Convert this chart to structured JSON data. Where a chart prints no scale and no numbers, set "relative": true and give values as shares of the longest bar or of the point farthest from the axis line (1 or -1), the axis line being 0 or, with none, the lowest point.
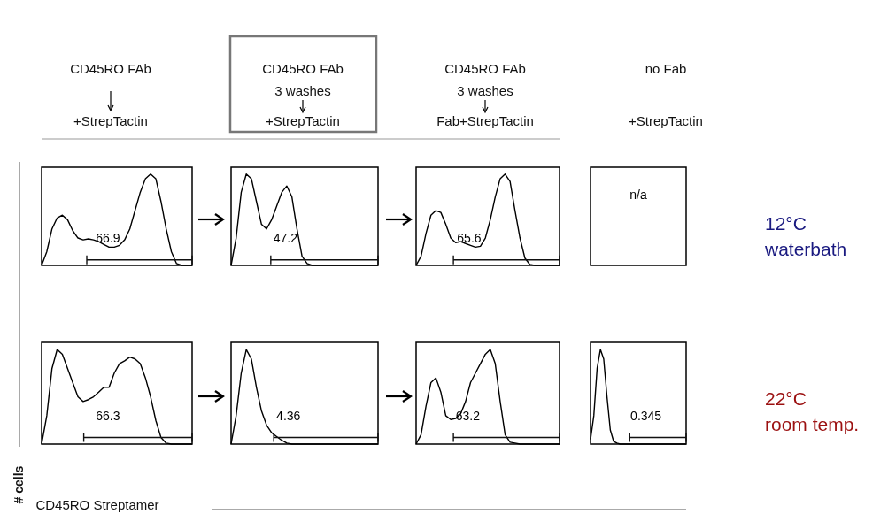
{
  "chart_data": [
    {
      "type": "line",
      "relative": true,
      "categories": [
        null,
        null,
        null,
        null,
        null,
        null,
        null,
        null,
        null,
        null,
        null,
        null,
        null,
        null,
        null,
        null,
        null,
        null,
        null,
        null,
        null,
        null,
        null,
        null,
        null,
        null,
        null,
        null,
        null,
        null
      ],
      "color": "#000000",
      "values": [
        0,
        0.15,
        0.4,
        0.52,
        0.55,
        0.5,
        0.38,
        0.3,
        0.28,
        0.29,
        0.28,
        0.26,
        0.23,
        0.2,
        0.2,
        0.22,
        0.28,
        0.4,
        0.6,
        0.8,
        0.95,
        1,
        0.95,
        0.7,
        0.4,
        0.15,
        0.02,
        0,
        0,
        0
      ],
      "ref_lines": [
        {
          "axis": "y",
          "value": 0.06
        }
      ],
      "annotations": [
        {
          "text": "66.9",
          "y": 0.06
        }
      ]
    },
    {
      "type": "line",
      "relative": true,
      "categories": [
        null,
        null,
        null,
        null,
        null,
        null,
        null,
        null,
        null,
        null,
        null,
        null,
        null,
        null,
        null,
        null,
        null,
        null,
        null,
        null,
        null,
        null,
        null,
        null,
        null,
        null,
        null,
        null,
        null,
        null
      ],
      "color": "#000000",
      "values": [
        0,
        0.3,
        0.8,
        1,
        0.95,
        0.7,
        0.45,
        0.4,
        0.5,
        0.65,
        0.8,
        0.87,
        0.75,
        0.4,
        0.1,
        0.02,
        0,
        0,
        0,
        0,
        0,
        0,
        0,
        0,
        0,
        0,
        0,
        0,
        0,
        0
      ],
      "ref_lines": [
        {
          "axis": "y",
          "value": 0.06
        }
      ],
      "annotations": [
        {
          "text": "47.2",
          "y": 0.06
        }
      ]
    },
    {
      "type": "line",
      "relative": true,
      "categories": [
        null,
        null,
        null,
        null,
        null,
        null,
        null,
        null,
        null,
        null,
        null,
        null,
        null,
        null,
        null,
        null,
        null,
        null,
        null,
        null,
        null,
        null,
        null,
        null,
        null,
        null,
        null,
        null,
        null,
        null
      ],
      "color": "#000000",
      "values": [
        0,
        0.1,
        0.35,
        0.55,
        0.6,
        0.58,
        0.45,
        0.3,
        0.25,
        0.26,
        0.24,
        0.22,
        0.2,
        0.21,
        0.3,
        0.5,
        0.75,
        0.95,
        1,
        0.92,
        0.6,
        0.3,
        0.08,
        0.01,
        0,
        0,
        0,
        0,
        0,
        0
      ],
      "ref_lines": [
        {
          "axis": "y",
          "value": 0.06
        }
      ],
      "annotations": [
        {
          "text": "65.6",
          "y": 0.06
        }
      ]
    },
    {
      "type": "other",
      "annotations": [
        "n/a"
      ]
    },
    {
      "type": "line",
      "relative": true,
      "categories": [
        null,
        null,
        null,
        null,
        null,
        null,
        null,
        null,
        null,
        null,
        null,
        null,
        null,
        null,
        null,
        null,
        null,
        null,
        null,
        null,
        null,
        null,
        null,
        null,
        null,
        null,
        null,
        null,
        null,
        null
      ],
      "color": "#000000",
      "values": [
        0,
        0.3,
        0.8,
        1,
        0.95,
        0.8,
        0.65,
        0.5,
        0.45,
        0.47,
        0.5,
        0.55,
        0.6,
        0.6,
        0.75,
        0.85,
        0.88,
        0.92,
        0.9,
        0.85,
        0.7,
        0.5,
        0.25,
        0.07,
        0.01,
        0,
        0,
        0,
        0,
        0
      ],
      "ref_lines": [
        {
          "axis": "y",
          "value": 0.07
        }
      ],
      "annotations": [
        {
          "text": "66.3",
          "y": 0.07
        }
      ]
    },
    {
      "type": "line",
      "relative": true,
      "categories": [
        null,
        null,
        null,
        null,
        null,
        null,
        null,
        null,
        null,
        null,
        null,
        null,
        null,
        null,
        null,
        null,
        null,
        null,
        null,
        null,
        null,
        null,
        null,
        null,
        null,
        null,
        null,
        null,
        null,
        null
      ],
      "color": "#000000",
      "values": [
        0,
        0.3,
        0.75,
        1,
        0.9,
        0.6,
        0.35,
        0.2,
        0.12,
        0.08,
        0.04,
        0.01,
        0,
        0,
        0,
        0,
        0,
        0,
        0,
        0,
        0,
        0,
        0,
        0,
        0,
        0,
        0,
        0,
        0,
        0
      ],
      "ref_lines": [
        {
          "axis": "y",
          "value": 0.07
        }
      ],
      "annotations": [
        {
          "text": "4.36",
          "y": 0.07
        }
      ]
    },
    {
      "type": "line",
      "relative": true,
      "categories": [
        null,
        null,
        null,
        null,
        null,
        null,
        null,
        null,
        null,
        null,
        null,
        null,
        null,
        null,
        null,
        null,
        null,
        null,
        null,
        null,
        null,
        null,
        null,
        null,
        null,
        null,
        null,
        null,
        null,
        null
      ],
      "color": "#000000",
      "values": [
        0,
        0.1,
        0.4,
        0.65,
        0.7,
        0.55,
        0.3,
        0.26,
        0.27,
        0.32,
        0.45,
        0.65,
        0.75,
        0.85,
        0.95,
        1,
        0.85,
        0.45,
        0.1,
        0.02,
        0.01,
        0,
        0,
        0,
        0,
        0,
        0,
        0,
        0,
        0
      ],
      "ref_lines": [
        {
          "axis": "y",
          "value": 0.07
        }
      ],
      "annotations": [
        {
          "text": "63.2",
          "y": 0.07
        }
      ]
    },
    {
      "type": "line",
      "relative": true,
      "categories": [
        null,
        null,
        null,
        null,
        null,
        null,
        null,
        null,
        null,
        null,
        null,
        null,
        null,
        null,
        null,
        null,
        null,
        null,
        null,
        null,
        null,
        null,
        null,
        null,
        null,
        null,
        null,
        null,
        null,
        null
      ],
      "color": "#000000",
      "values": [
        0.05,
        0.3,
        0.8,
        1,
        0.9,
        0.5,
        0.15,
        0.03,
        0.01,
        0,
        0,
        0,
        0,
        0,
        0,
        0,
        0,
        0,
        0,
        0,
        0,
        0,
        0,
        0,
        0,
        0,
        0,
        0,
        0,
        0
      ],
      "ref_lines": [
        {
          "axis": "y",
          "value": 0.07
        }
      ],
      "annotations": [
        {
          "text": "0.345",
          "y": 0.07
        }
      ]
    },
    {
      "type": "other",
      "annotations": [
        "CD45RO FAb",
        "+StrepTactin",
        "CD45RO FAb",
        "3 washes",
        "+StrepTactin",
        "CD45RO FAb",
        "3 washes",
        "Fab+StrepTactin",
        "no Fab",
        "+StrepTactin",
        "12°C",
        "waterbath",
        "22°C",
        "room temp.",
        "# cells",
        "CD45RO Streptamer"
      ]
    }
  ]
}
